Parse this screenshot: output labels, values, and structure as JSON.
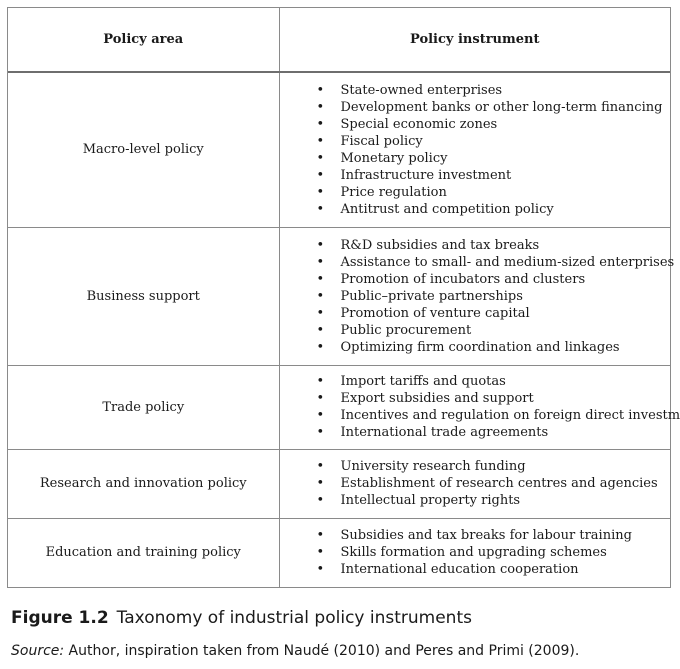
{
  "table": {
    "headers": {
      "area": "Policy area",
      "instrument": "Policy instrument"
    },
    "rows": [
      {
        "area": "Macro-level policy",
        "instruments": [
          "State-owned enterprises",
          "Development banks or other long-term financing",
          "Special economic zones",
          "Fiscal policy",
          "Monetary policy",
          "Infrastructure investment",
          "Price regulation",
          "Antitrust and competition policy"
        ]
      },
      {
        "area": "Business support",
        "instruments": [
          "R&D subsidies and tax breaks",
          "Assistance to small- and medium-sized enterprises",
          "Promotion of incubators and clusters",
          "Public–private partnerships",
          "Promotion of venture capital",
          "Public procurement",
          "Optimizing firm coordination and linkages"
        ]
      },
      {
        "area": "Trade policy",
        "instruments": [
          "Import tariffs and quotas",
          "Export subsidies and support",
          "Incentives and regulation on foreign direct investment",
          "International trade agreements"
        ]
      },
      {
        "area": "Research and innovation policy",
        "instruments": [
          "University research funding",
          "Establishment of research centres and agencies",
          "Intellectual property rights"
        ]
      },
      {
        "area": "Education and training policy",
        "instruments": [
          "Subsidies and tax breaks for labour training",
          "Skills formation and upgrading schemes",
          "International education cooperation"
        ]
      }
    ]
  },
  "caption": {
    "label": "Figure 1.2",
    "title": "Taxonomy of industrial policy instruments"
  },
  "source": {
    "label": "Source:",
    "text": " Author, inspiration taken from Naudé (2010) and Peres and Primi (2009)."
  }
}
